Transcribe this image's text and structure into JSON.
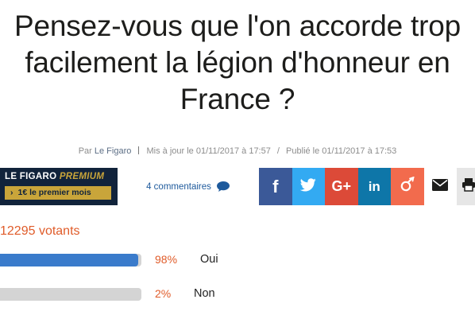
{
  "article": {
    "title": "Pensez-vous que l'on accorde trop facilement la légion d'honneur en France ?",
    "meta": {
      "by_prefix": "Par",
      "author": "Le Figaro",
      "updated": "Mis à jour le 01/11/2017 à 17:57",
      "slash": "/",
      "published": "Publié le 01/11/2017 à 17:53"
    }
  },
  "toolbar": {
    "premium_brand": "LE FIGARO",
    "premium_word": "PREMIUM",
    "premium_cta": "1€ le premier mois",
    "comments_label": "4 commentaires",
    "share_icons": [
      "facebook-icon",
      "twitter-icon",
      "google-plus-icon",
      "linkedin-icon",
      "viadeo-icon",
      "mail-icon",
      "print-icon"
    ],
    "share_glyphs": {
      "facebook": "f",
      "google": "G+",
      "linkedin": "in"
    },
    "colors": {
      "premium_bg": "#11233b",
      "premium_gold": "#c9a53a",
      "facebook": "#3b5998",
      "twitter": "#33aaf2",
      "google": "#dc4a38",
      "linkedin": "#0e76a8",
      "viadeo": "#f26b4d"
    }
  },
  "poll": {
    "voters_label": "12295 votants",
    "options": [
      {
        "percent_label": "98%",
        "label": "Oui",
        "percent": 98,
        "color": "#3a7bcb"
      },
      {
        "percent_label": "2%",
        "label": "Non",
        "percent": 2,
        "color": "#d4d4d4"
      }
    ]
  }
}
